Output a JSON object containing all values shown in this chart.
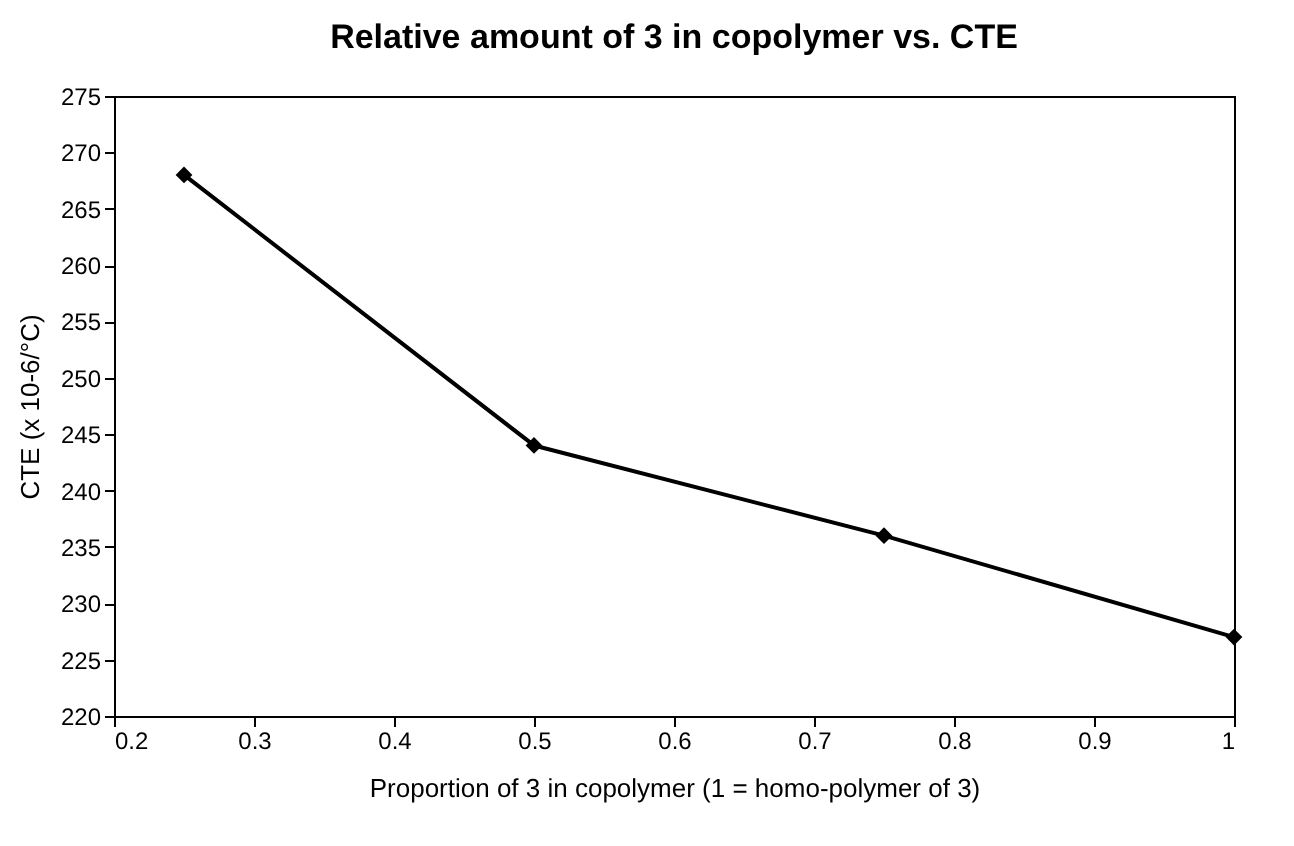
{
  "chart_data": {
    "type": "line",
    "title": "Relative amount of 3 in copolymer vs. CTE",
    "xlabel": "Proportion of 3 in copolymer (1 = homo-polymer of 3)",
    "ylabel": "CTE (x 10-6/°C)",
    "x": [
      0.25,
      0.5,
      0.75,
      1
    ],
    "series": [
      {
        "color": "#000000",
        "values": [
          268,
          244,
          236,
          227
        ]
      }
    ],
    "xlim": [
      0.2,
      1
    ],
    "xticks": [
      0.2,
      0.3,
      0.4,
      0.5,
      0.6,
      0.7,
      0.8,
      0.9,
      1
    ],
    "ylim": [
      220,
      275
    ],
    "yticks": [
      220,
      225,
      230,
      235,
      240,
      245,
      250,
      255,
      260,
      265,
      270,
      275
    ],
    "grid": false,
    "legend": false,
    "marker": "diamond",
    "line_style": "solid"
  }
}
